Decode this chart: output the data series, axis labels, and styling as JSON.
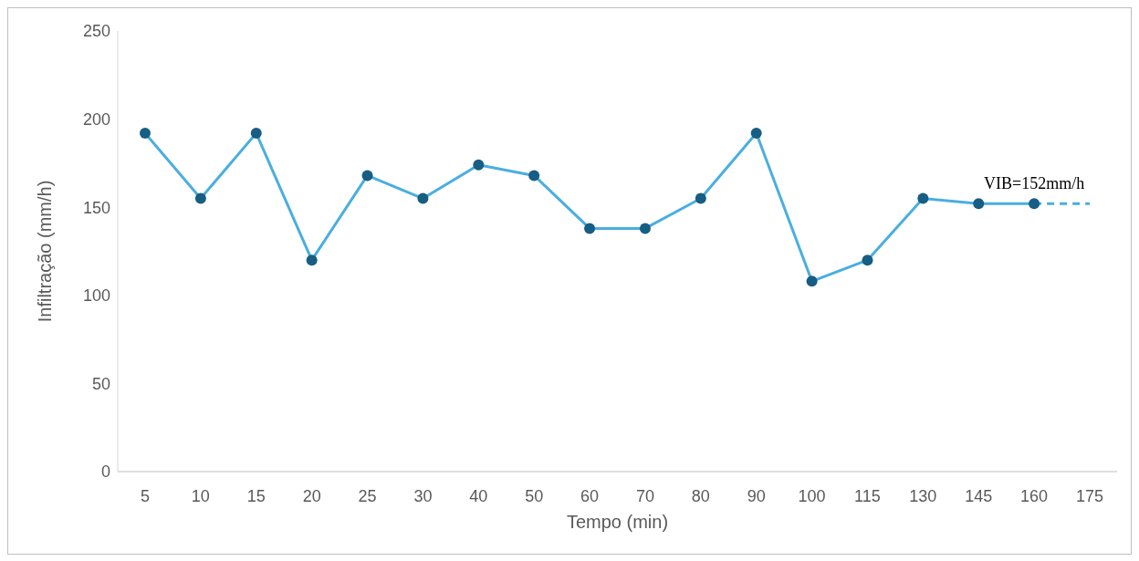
{
  "chart_data": {
    "type": "line",
    "xlabel": "Tempo (min)",
    "ylabel": "Infiltração (mm/h)",
    "categories": [
      "5",
      "10",
      "15",
      "20",
      "25",
      "30",
      "40",
      "50",
      "60",
      "70",
      "80",
      "90",
      "100",
      "115",
      "130",
      "145",
      "160",
      "175"
    ],
    "series": [
      {
        "color": "#4aaee0",
        "colors": [
          "#175d84",
          "#175d84",
          "#175d84",
          "#175d84",
          "#175d84",
          "#175d84",
          "#175d84",
          "#175d84",
          "#175d84",
          "#175d84",
          "#175d84",
          "#175d84",
          "#175d84",
          "#175d84",
          "#175d84",
          "#175d84",
          "#175d84",
          null
        ],
        "marker": "circle",
        "line_style": "solid",
        "values": [
          192,
          155,
          192,
          120,
          168,
          155,
          174,
          168,
          138,
          138,
          155,
          192,
          108,
          120,
          155,
          152,
          152,
          null
        ]
      },
      {
        "color": "#4aaee0",
        "marker": "none",
        "line_style": "dashed",
        "values": [
          null,
          null,
          null,
          null,
          null,
          null,
          null,
          null,
          null,
          null,
          null,
          null,
          null,
          null,
          null,
          null,
          152,
          152
        ]
      }
    ],
    "annotations": [
      {
        "text": "VIB=152mm/h",
        "x": "160",
        "y": 152
      }
    ],
    "ylim": [
      0,
      250
    ],
    "yticks": [
      0,
      50,
      100,
      150,
      200,
      250
    ],
    "grid": false
  }
}
